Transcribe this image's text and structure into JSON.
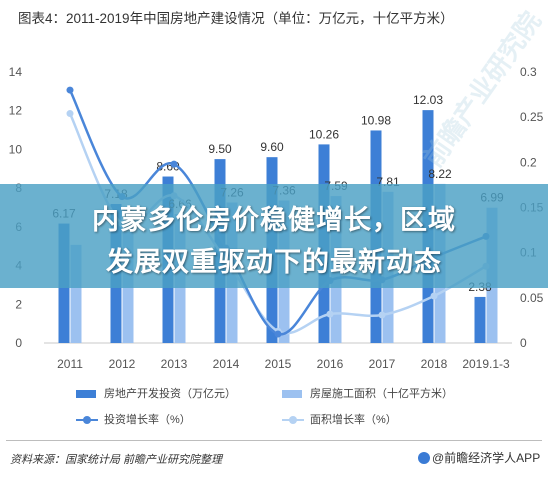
{
  "chart_data": {
    "type": "bar",
    "title": "图表4：2011-2019年中国房地产建设情况（单位：万亿元，十亿平方米）",
    "categories": [
      "2011",
      "2012",
      "2013",
      "2014",
      "2015",
      "2016",
      "2017",
      "2018",
      "2019.1-3"
    ],
    "y_left": {
      "min": 0,
      "max": 14,
      "ticks": [
        "0",
        "2",
        "4",
        "6",
        "8",
        "10",
        "12",
        "14"
      ]
    },
    "y_right": {
      "min": 0,
      "max": 0.3,
      "ticks": [
        "0",
        "0.05",
        "0.1",
        "0.15",
        "0.2",
        "0.25",
        "0.3"
      ]
    },
    "grid": false,
    "legend_position": "bottom",
    "series": [
      {
        "name": "房地产开发投资（万亿元）",
        "type": "bar",
        "axis": "left",
        "color": "#3d7fd6",
        "values": [
          6.17,
          7.18,
          8.6,
          9.5,
          9.6,
          10.26,
          10.98,
          12.03,
          2.38
        ],
        "labels": [
          "6.17",
          "7.18",
          "8.60",
          "9.50",
          "9.60",
          "10.26",
          "10.98",
          "12.03",
          "2.38"
        ]
      },
      {
        "name": "房屋施工面积（十亿平方米）",
        "type": "bar",
        "axis": "left",
        "color": "#9cc1f0",
        "values": [
          5.07,
          5.73,
          6.66,
          7.26,
          7.36,
          7.59,
          7.81,
          8.22,
          6.99
        ],
        "labels": [
          "",
          "",
          "6.66",
          "7.26",
          "7.36",
          "7.59",
          "7.81",
          "8.22",
          "6.99"
        ]
      },
      {
        "name": "投资增长率（%）",
        "type": "line",
        "axis": "right",
        "color": "#4a86d9",
        "values": [
          0.28,
          0.162,
          0.198,
          0.105,
          0.01,
          0.069,
          0.07,
          0.095,
          0.118
        ]
      },
      {
        "name": "面积增长率（%）",
        "type": "line",
        "axis": "right",
        "color": "#b5d2f3",
        "values": [
          0.254,
          0.132,
          0.163,
          0.092,
          0.013,
          0.032,
          0.031,
          0.052,
          0.085
        ]
      }
    ]
  },
  "banner": {
    "line1": "内蒙多伦房价稳健增长，区域",
    "line2": "发展双重驱动下的最新动态"
  },
  "footer": {
    "source": "资料来源：国家统计局 前瞻产业研究院整理",
    "brand": "@前瞻经济学人APP"
  },
  "watermark": "前瞻产业研究院"
}
